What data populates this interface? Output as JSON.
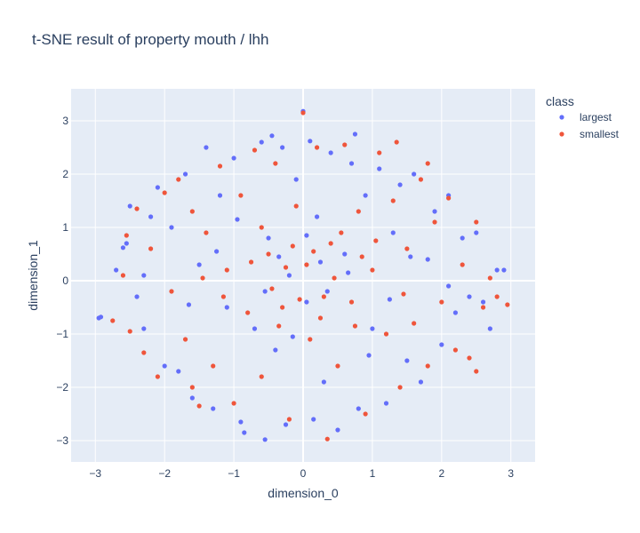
{
  "chart_data": {
    "type": "scatter",
    "title": "t-SNE result of property mouth / lhh",
    "xlabel": "dimension_0",
    "ylabel": "dimension_1",
    "xlim": [
      -3.35,
      3.35
    ],
    "ylim": [
      -3.4,
      3.6
    ],
    "xticks": [
      -3,
      -2,
      -1,
      0,
      1,
      2,
      3
    ],
    "yticks": [
      -3,
      -2,
      -1,
      0,
      1,
      2,
      3
    ],
    "xtick_labels": [
      "−3",
      "−2",
      "−1",
      "0",
      "1",
      "2",
      "3"
    ],
    "ytick_labels": [
      "−3",
      "−2",
      "−1",
      "0",
      "1",
      "2",
      "3"
    ],
    "grid": true,
    "legend": {
      "title": "class",
      "placement": "top-right"
    },
    "plot_bgcolor": "#e5ecf6",
    "series": [
      {
        "name": "largest",
        "color": "#636efa",
        "points": [
          [
            -2.95,
            -0.7
          ],
          [
            -2.92,
            -0.68
          ],
          [
            -2.7,
            0.2
          ],
          [
            -2.6,
            0.62
          ],
          [
            -2.55,
            0.7
          ],
          [
            -2.5,
            1.4
          ],
          [
            -2.4,
            -0.3
          ],
          [
            -2.3,
            -0.9
          ],
          [
            -2.2,
            1.2
          ],
          [
            -2.1,
            1.75
          ],
          [
            -2.0,
            -1.6
          ],
          [
            -1.9,
            1.0
          ],
          [
            -1.8,
            -1.7
          ],
          [
            -1.7,
            2.0
          ],
          [
            -1.6,
            -2.2
          ],
          [
            -1.5,
            0.3
          ],
          [
            -1.4,
            2.5
          ],
          [
            -1.3,
            -2.4
          ],
          [
            -1.2,
            1.6
          ],
          [
            -1.1,
            -0.5
          ],
          [
            -1.0,
            2.3
          ],
          [
            -0.9,
            -2.65
          ],
          [
            -0.85,
            -2.85
          ],
          [
            -0.6,
            2.6
          ],
          [
            -0.55,
            -2.98
          ],
          [
            -0.5,
            0.8
          ],
          [
            -0.45,
            2.72
          ],
          [
            -0.4,
            -1.3
          ],
          [
            -0.3,
            2.5
          ],
          [
            -0.25,
            -2.7
          ],
          [
            -0.2,
            0.1
          ],
          [
            -0.1,
            1.9
          ],
          [
            0.0,
            3.18
          ],
          [
            0.05,
            -0.4
          ],
          [
            0.1,
            2.62
          ],
          [
            0.15,
            -2.6
          ],
          [
            0.2,
            1.2
          ],
          [
            0.3,
            -1.9
          ],
          [
            0.4,
            2.4
          ],
          [
            0.5,
            -2.8
          ],
          [
            0.6,
            0.5
          ],
          [
            0.7,
            2.2
          ],
          [
            0.75,
            2.75
          ],
          [
            0.8,
            -2.4
          ],
          [
            0.9,
            1.6
          ],
          [
            1.0,
            -0.9
          ],
          [
            1.1,
            2.1
          ],
          [
            1.2,
            -2.3
          ],
          [
            1.3,
            0.9
          ],
          [
            1.4,
            1.8
          ],
          [
            1.5,
            -1.5
          ],
          [
            1.6,
            2.0
          ],
          [
            1.7,
            -1.9
          ],
          [
            1.8,
            0.4
          ],
          [
            1.9,
            1.3
          ],
          [
            2.0,
            -1.2
          ],
          [
            2.1,
            1.6
          ],
          [
            2.2,
            -0.6
          ],
          [
            2.3,
            0.8
          ],
          [
            2.4,
            -0.3
          ],
          [
            2.5,
            0.9
          ],
          [
            2.6,
            -0.4
          ],
          [
            2.7,
            -0.9
          ],
          [
            2.8,
            0.2
          ],
          [
            2.9,
            0.2
          ],
          [
            -0.35,
            0.45
          ],
          [
            0.35,
            -0.2
          ],
          [
            -0.7,
            -0.9
          ],
          [
            0.65,
            0.15
          ],
          [
            -1.25,
            0.55
          ],
          [
            1.25,
            -0.35
          ],
          [
            0.05,
            0.85
          ],
          [
            -0.15,
            -1.05
          ],
          [
            -1.65,
            -0.45
          ],
          [
            1.55,
            0.45
          ],
          [
            -0.95,
            1.15
          ],
          [
            0.95,
            -1.4
          ],
          [
            -2.3,
            0.1
          ],
          [
            2.1,
            -0.1
          ],
          [
            -0.55,
            -0.2
          ],
          [
            0.25,
            0.35
          ]
        ]
      },
      {
        "name": "smallest",
        "color": "#ef553b",
        "points": [
          [
            -2.75,
            -0.75
          ],
          [
            -2.6,
            0.1
          ],
          [
            -2.5,
            -0.95
          ],
          [
            -2.4,
            1.35
          ],
          [
            -2.3,
            -1.35
          ],
          [
            -2.2,
            0.6
          ],
          [
            -2.1,
            -1.8
          ],
          [
            -2.0,
            1.65
          ],
          [
            -1.9,
            -0.2
          ],
          [
            -1.8,
            1.9
          ],
          [
            -1.7,
            -1.1
          ],
          [
            -1.6,
            1.3
          ],
          [
            -1.5,
            -2.35
          ],
          [
            -1.4,
            0.9
          ],
          [
            -1.3,
            -1.6
          ],
          [
            -1.2,
            2.15
          ],
          [
            -1.1,
            0.2
          ],
          [
            -1.0,
            -2.3
          ],
          [
            -0.9,
            1.6
          ],
          [
            -0.8,
            -0.6
          ],
          [
            -0.7,
            2.45
          ],
          [
            -0.6,
            -1.8
          ],
          [
            -0.5,
            0.5
          ],
          [
            -0.4,
            2.2
          ],
          [
            -0.3,
            -0.5
          ],
          [
            -0.2,
            -2.6
          ],
          [
            -0.1,
            1.4
          ],
          [
            0.0,
            3.15
          ],
          [
            0.05,
            0.3
          ],
          [
            0.1,
            -1.1
          ],
          [
            0.2,
            2.5
          ],
          [
            0.3,
            -0.3
          ],
          [
            0.35,
            -2.97
          ],
          [
            0.4,
            0.7
          ],
          [
            0.5,
            -1.6
          ],
          [
            0.6,
            2.55
          ],
          [
            0.7,
            -0.4
          ],
          [
            0.8,
            1.3
          ],
          [
            0.9,
            -2.5
          ],
          [
            1.0,
            0.2
          ],
          [
            1.1,
            2.4
          ],
          [
            1.2,
            -1.0
          ],
          [
            1.3,
            1.5
          ],
          [
            1.35,
            2.6
          ],
          [
            1.4,
            -2.0
          ],
          [
            1.5,
            0.6
          ],
          [
            1.6,
            -0.8
          ],
          [
            1.7,
            1.9
          ],
          [
            1.8,
            -1.6
          ],
          [
            1.9,
            1.1
          ],
          [
            2.0,
            -0.4
          ],
          [
            2.1,
            1.55
          ],
          [
            2.2,
            -1.3
          ],
          [
            2.3,
            0.3
          ],
          [
            2.4,
            -1.45
          ],
          [
            2.5,
            1.1
          ],
          [
            2.6,
            -0.5
          ],
          [
            2.7,
            0.05
          ],
          [
            2.8,
            -0.3
          ],
          [
            2.95,
            -0.45
          ],
          [
            -0.45,
            -0.15
          ],
          [
            0.15,
            0.55
          ],
          [
            -0.25,
            0.25
          ],
          [
            0.45,
            0.05
          ],
          [
            -0.75,
            0.35
          ],
          [
            0.75,
            -0.85
          ],
          [
            -0.05,
            -0.35
          ],
          [
            0.55,
            0.9
          ],
          [
            -1.15,
            -0.3
          ],
          [
            1.05,
            0.75
          ],
          [
            -0.6,
            1.0
          ],
          [
            0.25,
            -0.7
          ],
          [
            -1.45,
            0.05
          ],
          [
            1.45,
            -0.25
          ],
          [
            -0.15,
            0.65
          ],
          [
            0.85,
            0.45
          ],
          [
            -0.35,
            -0.85
          ],
          [
            2.5,
            -1.7
          ],
          [
            -2.55,
            0.85
          ],
          [
            1.8,
            2.2
          ],
          [
            -1.6,
            -2.0
          ]
        ]
      }
    ]
  }
}
